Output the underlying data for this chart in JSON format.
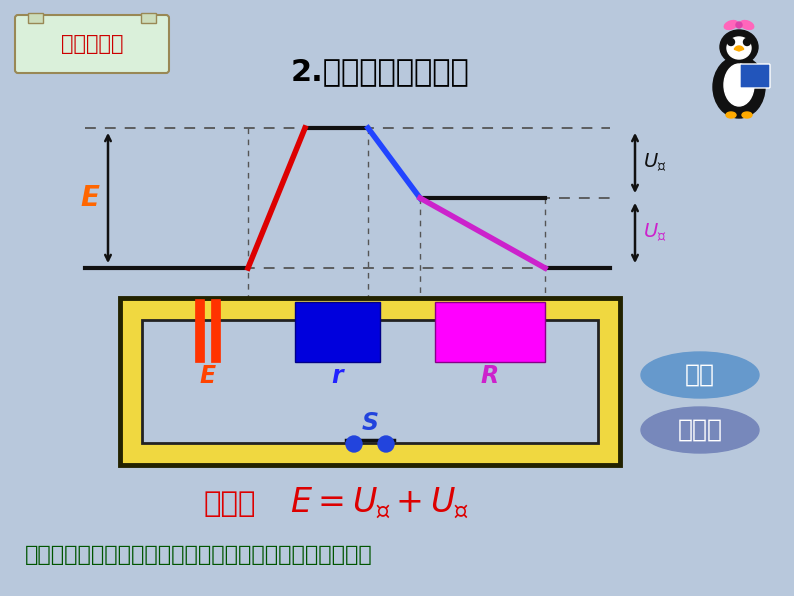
{
  "bg_color": "#b8c8dc",
  "title": "2.电路中电压落关系",
  "question_label": "问题探究一",
  "bottom_conclusion_pre": "结论：",
  "bottom_question": "思考：电动势是如何产生的？电源内部电势是如何升高的？",
  "legend_dian_liu": "电流",
  "legend_dian_dong_shi": "电动势",
  "E_label": "E",
  "r_label": "r",
  "R_label": "R",
  "S_label": "S",
  "U_nei": "U_内",
  "U_wai": "U_外",
  "E_diag_label": "E"
}
